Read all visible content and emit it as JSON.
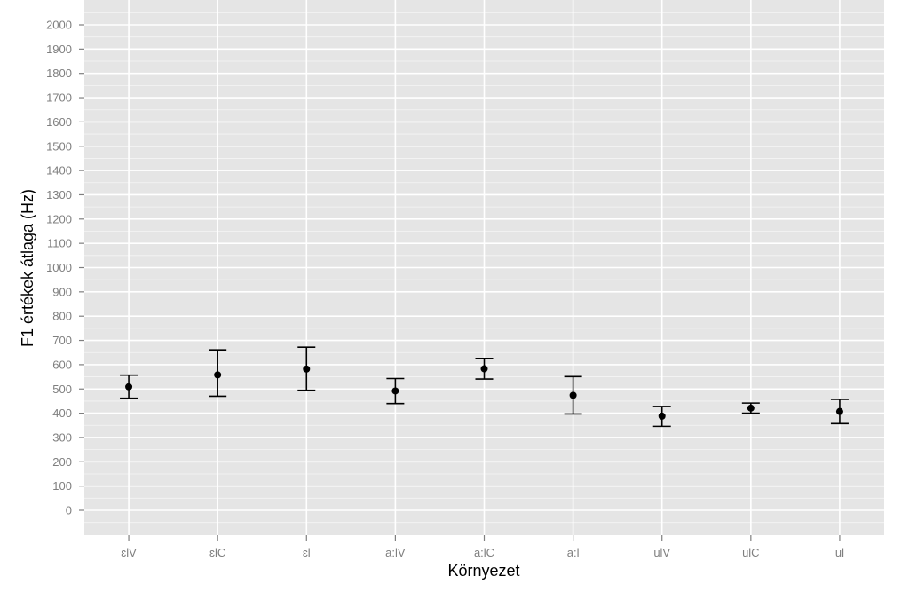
{
  "chart_data": {
    "type": "scatter",
    "xlabel": "Környezet",
    "ylabel": "F1 értékek átlaga (Hz)",
    "ylim": [
      -100,
      2100
    ],
    "yticks": [
      0,
      100,
      200,
      300,
      400,
      500,
      600,
      700,
      800,
      900,
      1000,
      1100,
      1200,
      1300,
      1400,
      1500,
      1600,
      1700,
      1800,
      1900,
      2000
    ],
    "categories": [
      "ɛlV",
      "ɛlC",
      "ɛl",
      "a:lV",
      "a:lC",
      "a:l",
      "ulV",
      "ulC",
      "ul"
    ],
    "values": [
      509,
      558,
      582,
      492,
      583,
      474,
      388,
      421,
      407
    ],
    "error_low": [
      462,
      470,
      495,
      440,
      541,
      397,
      346,
      400,
      357
    ],
    "error_high": [
      557,
      661,
      672,
      543,
      626,
      551,
      428,
      442,
      457
    ],
    "grid": true,
    "colors": {
      "panel_background": "#e5e5e5",
      "grid_line": "#ffffff",
      "point": "#000000",
      "tick_label": "#7f7f7f"
    }
  }
}
